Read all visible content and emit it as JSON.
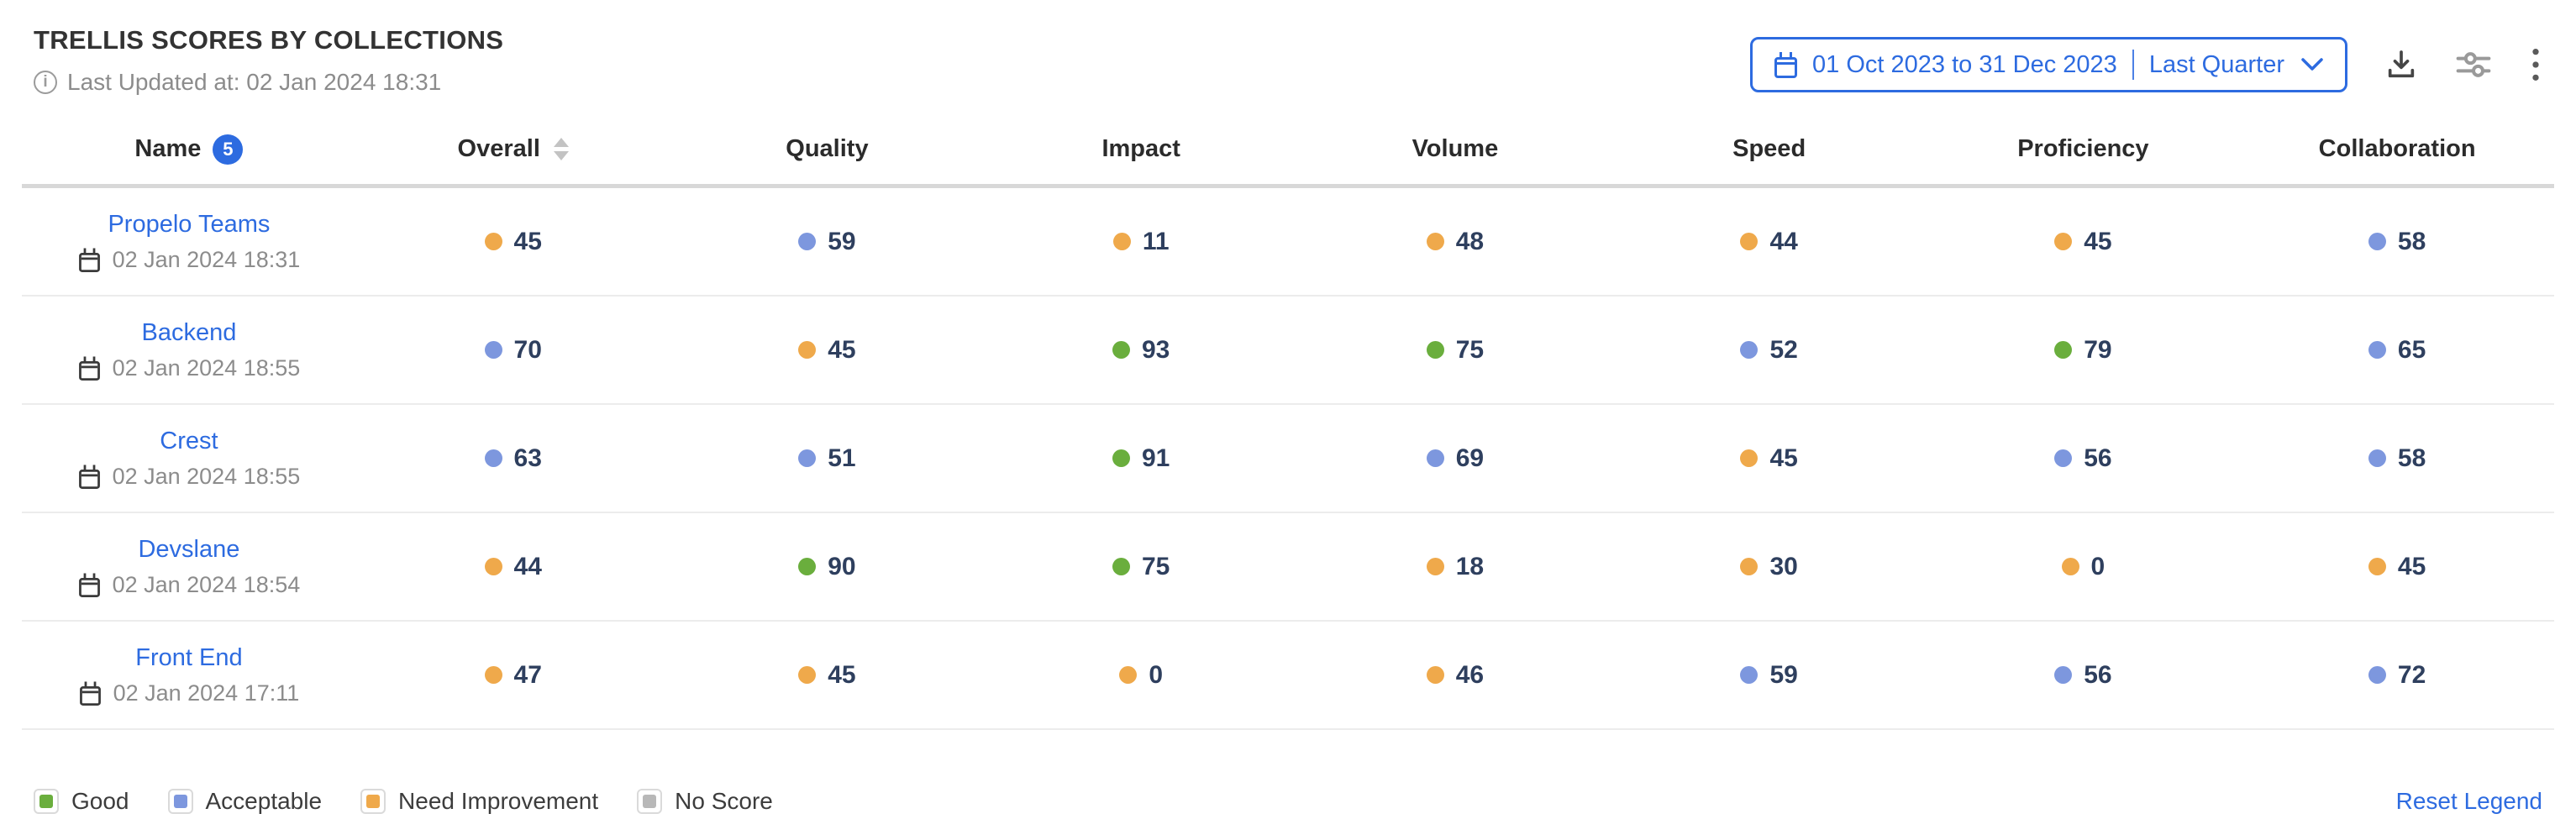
{
  "panel": {
    "title": "TRELLIS SCORES BY COLLECTIONS",
    "last_updated": "Last Updated at: 02 Jan 2024 18:31"
  },
  "toolbar": {
    "date_range": "01 Oct 2023 to 31 Dec 2023",
    "date_preset": "Last Quarter",
    "icons": [
      "calendar-icon",
      "chevron-down-icon",
      "download-icon",
      "filter-sliders-icon",
      "kebab-menu-icon"
    ]
  },
  "table": {
    "columns": [
      "Name",
      "Overall",
      "Quality",
      "Impact",
      "Volume",
      "Speed",
      "Proficiency",
      "Collaboration"
    ],
    "row_count_badge": "5",
    "rows": [
      {
        "name": "Propelo Teams",
        "date": "02 Jan 2024 18:31",
        "scores": [
          {
            "value": 45,
            "rating": "need_improvement"
          },
          {
            "value": 59,
            "rating": "acceptable"
          },
          {
            "value": 11,
            "rating": "need_improvement"
          },
          {
            "value": 48,
            "rating": "need_improvement"
          },
          {
            "value": 44,
            "rating": "need_improvement"
          },
          {
            "value": 45,
            "rating": "need_improvement"
          },
          {
            "value": 58,
            "rating": "acceptable"
          }
        ]
      },
      {
        "name": "Backend",
        "date": "02 Jan 2024 18:55",
        "scores": [
          {
            "value": 70,
            "rating": "acceptable"
          },
          {
            "value": 45,
            "rating": "need_improvement"
          },
          {
            "value": 93,
            "rating": "good"
          },
          {
            "value": 75,
            "rating": "good"
          },
          {
            "value": 52,
            "rating": "acceptable"
          },
          {
            "value": 79,
            "rating": "good"
          },
          {
            "value": 65,
            "rating": "acceptable"
          }
        ]
      },
      {
        "name": "Crest",
        "date": "02 Jan 2024 18:55",
        "scores": [
          {
            "value": 63,
            "rating": "acceptable"
          },
          {
            "value": 51,
            "rating": "acceptable"
          },
          {
            "value": 91,
            "rating": "good"
          },
          {
            "value": 69,
            "rating": "acceptable"
          },
          {
            "value": 45,
            "rating": "need_improvement"
          },
          {
            "value": 56,
            "rating": "acceptable"
          },
          {
            "value": 58,
            "rating": "acceptable"
          }
        ]
      },
      {
        "name": "Devslane",
        "date": "02 Jan 2024 18:54",
        "scores": [
          {
            "value": 44,
            "rating": "need_improvement"
          },
          {
            "value": 90,
            "rating": "good"
          },
          {
            "value": 75,
            "rating": "good"
          },
          {
            "value": 18,
            "rating": "need_improvement"
          },
          {
            "value": 30,
            "rating": "need_improvement"
          },
          {
            "value": 0,
            "rating": "need_improvement"
          },
          {
            "value": 45,
            "rating": "need_improvement"
          }
        ]
      },
      {
        "name": "Front End",
        "date": "02 Jan 2024 17:11",
        "scores": [
          {
            "value": 47,
            "rating": "need_improvement"
          },
          {
            "value": 45,
            "rating": "need_improvement"
          },
          {
            "value": 0,
            "rating": "need_improvement"
          },
          {
            "value": 46,
            "rating": "need_improvement"
          },
          {
            "value": 59,
            "rating": "acceptable"
          },
          {
            "value": 56,
            "rating": "acceptable"
          },
          {
            "value": 72,
            "rating": "acceptable"
          }
        ]
      }
    ]
  },
  "legend": {
    "items": [
      {
        "label": "Good",
        "rating": "good"
      },
      {
        "label": "Acceptable",
        "rating": "acceptable"
      },
      {
        "label": "Need Improvement",
        "rating": "need_improvement"
      },
      {
        "label": "No Score",
        "rating": "no_score"
      }
    ],
    "reset_label": "Reset Legend"
  },
  "colors": {
    "accent_blue": "#2d6be0",
    "good": "#6aae3d",
    "acceptable": "#7d97de",
    "need_improvement": "#efa94b",
    "no_score": "#b8b8b8",
    "score_text": "#2e3f5e"
  }
}
